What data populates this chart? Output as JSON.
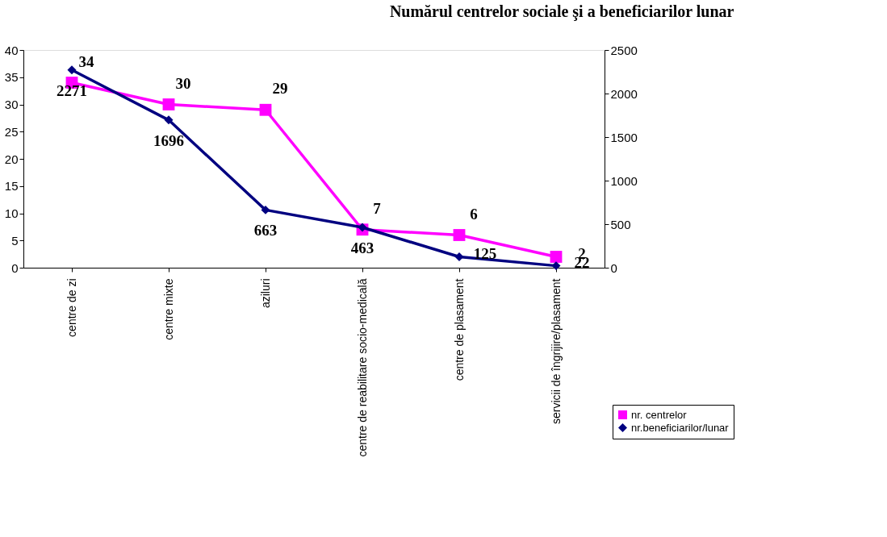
{
  "chart_data": {
    "type": "line",
    "title": "Numărul centrelor sociale şi a beneficiarilor lunar",
    "categories": [
      "centre de zi",
      "centre mixte",
      "aziluri",
      "centre de reabilitare socio-medicală",
      "centre de plasament",
      "servicii de îngrijire/plasament"
    ],
    "series": [
      {
        "name": "nr. centrelor",
        "color": "#ff00ff",
        "marker": "square",
        "axis": "y",
        "values": [
          34,
          30,
          29,
          7,
          6,
          2
        ]
      },
      {
        "name": "nr.beneficiarilor/lunar",
        "color": "#000080",
        "marker": "diamond",
        "axis": "y2",
        "values": [
          2271,
          1696,
          663,
          463,
          125,
          22
        ]
      }
    ],
    "ylim": [
      0,
      40
    ],
    "yticks": [
      0,
      5,
      10,
      15,
      20,
      25,
      30,
      35,
      40
    ],
    "y2lim": [
      0,
      2500
    ],
    "y2ticks": [
      0,
      500,
      1000,
      1500,
      2000,
      2500
    ],
    "data_labels": true,
    "legend": "bottom right",
    "grid": false
  }
}
